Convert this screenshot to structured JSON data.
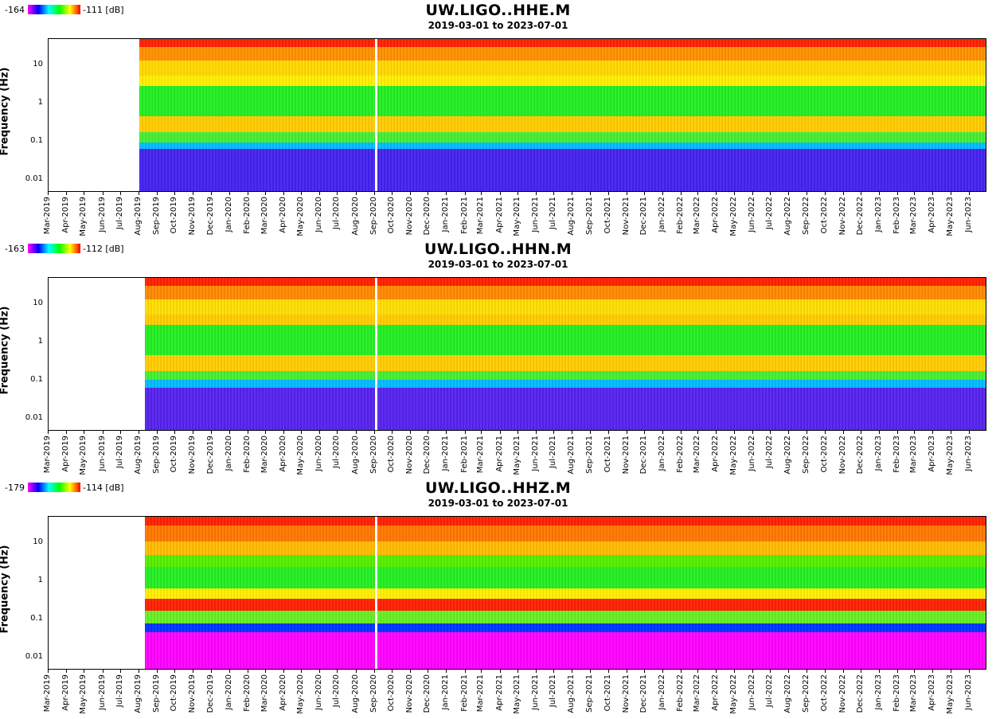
{
  "chart_data": [
    {
      "type": "heatmap",
      "title": "UW.LIGO..HHE.M",
      "subtitle": "2019-03-01 to 2023-07-01",
      "ylabel": "Frequency (Hz)",
      "yscale": "log",
      "ylim": [
        0.005,
        50
      ],
      "yticks": [
        "10",
        "1",
        "0.1",
        "0.01"
      ],
      "colorbar": {
        "min": "-164",
        "max": "-111 [dB]"
      },
      "data_start": "2019-08-01",
      "x_ticks": [
        "Mar-2019",
        "Apr-2019",
        "May-2019",
        "Jun-2019",
        "Jul-2019",
        "Aug-2019",
        "Sep-2019",
        "Oct-2019",
        "Nov-2019",
        "Dec-2019",
        "Jan-2020",
        "Feb-2020",
        "Mar-2020",
        "Apr-2020",
        "May-2020",
        "Jun-2020",
        "Jul-2020",
        "Aug-2020",
        "Sep-2020",
        "Oct-2020",
        "Nov-2020",
        "Dec-2020",
        "Jan-2021",
        "Feb-2021",
        "Mar-2021",
        "Apr-2021",
        "May-2021",
        "Jun-2021",
        "Jul-2021",
        "Aug-2021",
        "Sep-2021",
        "Oct-2021",
        "Nov-2021",
        "Dec-2021",
        "Jan-2022",
        "Feb-2022",
        "Mar-2022",
        "Apr-2022",
        "May-2022",
        "Jun-2022",
        "Jul-2022",
        "Aug-2022",
        "Sep-2022",
        "Oct-2022",
        "Nov-2022",
        "Dec-2022",
        "Jan-2023",
        "Feb-2023",
        "Mar-2023",
        "Apr-2023",
        "May-2023",
        "Jun-2023"
      ]
    },
    {
      "type": "heatmap",
      "title": "UW.LIGO..HHN.M",
      "subtitle": "2019-03-01 to 2023-07-01",
      "ylabel": "Frequency (Hz)",
      "yscale": "log",
      "ylim": [
        0.005,
        50
      ],
      "yticks": [
        "10",
        "1",
        "0.1",
        "0.01"
      ],
      "colorbar": {
        "min": "-163",
        "max": "-112 [dB]"
      },
      "data_start": "2019-08-10",
      "x_ticks": [
        "Mar-2019",
        "Apr-2019",
        "May-2019",
        "Jun-2019",
        "Jul-2019",
        "Aug-2019",
        "Sep-2019",
        "Oct-2019",
        "Nov-2019",
        "Dec-2019",
        "Jan-2020",
        "Feb-2020",
        "Mar-2020",
        "Apr-2020",
        "May-2020",
        "Jun-2020",
        "Jul-2020",
        "Aug-2020",
        "Sep-2020",
        "Oct-2020",
        "Nov-2020",
        "Dec-2020",
        "Jan-2021",
        "Feb-2021",
        "Mar-2021",
        "Apr-2021",
        "May-2021",
        "Jun-2021",
        "Jul-2021",
        "Aug-2021",
        "Sep-2021",
        "Oct-2021",
        "Nov-2021",
        "Dec-2021",
        "Jan-2022",
        "Feb-2022",
        "Mar-2022",
        "Apr-2022",
        "May-2022",
        "Jun-2022",
        "Jul-2022",
        "Aug-2022",
        "Sep-2022",
        "Oct-2022",
        "Nov-2022",
        "Dec-2022",
        "Jan-2023",
        "Feb-2023",
        "Mar-2023",
        "Apr-2023",
        "May-2023",
        "Jun-2023"
      ]
    },
    {
      "type": "heatmap",
      "title": "UW.LIGO..HHZ.M",
      "subtitle": "2019-03-01 to 2023-07-01",
      "ylabel": "Frequency (Hz)",
      "yscale": "log",
      "ylim": [
        0.005,
        50
      ],
      "yticks": [
        "10",
        "1",
        "0.1",
        "0.01"
      ],
      "colorbar": {
        "min": "-179",
        "max": "-114 [dB]"
      },
      "data_start": "2019-08-10",
      "x_ticks": [
        "Mar-2019",
        "Apr-2019",
        "May-2019",
        "Jun-2019",
        "Jul-2019",
        "Aug-2019",
        "Sep-2019",
        "Oct-2019",
        "Nov-2019",
        "Dec-2019",
        "Jan-2020",
        "Feb-2020",
        "Mar-2020",
        "Apr-2020",
        "May-2020",
        "Jun-2020",
        "Jul-2020",
        "Aug-2020",
        "Sep-2020",
        "Oct-2020",
        "Nov-2020",
        "Dec-2020",
        "Jan-2021",
        "Feb-2021",
        "Mar-2021",
        "Apr-2021",
        "May-2021",
        "Jun-2021",
        "Jul-2021",
        "Aug-2021",
        "Sep-2021",
        "Oct-2021",
        "Nov-2021",
        "Dec-2021",
        "Jan-2022",
        "Feb-2022",
        "Mar-2022",
        "Apr-2022",
        "May-2022",
        "Jun-2022",
        "Jul-2022",
        "Aug-2022",
        "Sep-2022",
        "Oct-2022",
        "Nov-2022",
        "Dec-2022",
        "Jan-2023",
        "Feb-2023",
        "Mar-2023",
        "Apr-2023",
        "May-2023",
        "Jun-2023"
      ]
    }
  ]
}
